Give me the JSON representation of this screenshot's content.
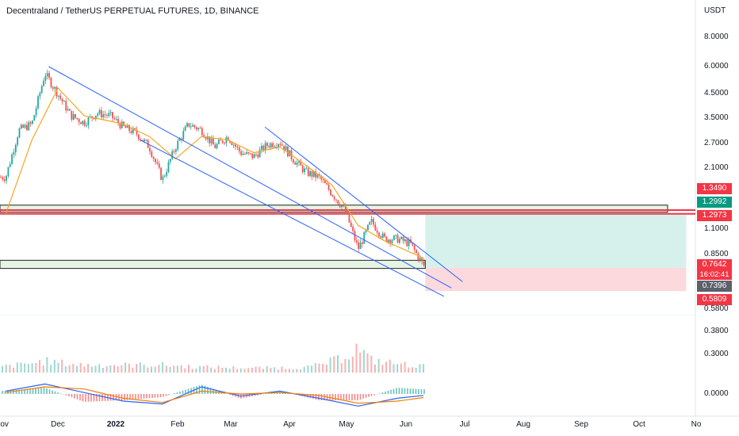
{
  "header": {
    "title": "Decentraland / TetherUS PERPETUAL FUTURES, 1D, BINANCE",
    "unit": "USDT"
  },
  "colors": {
    "up": "#26a69a",
    "down": "#ef5350",
    "ema": "#f5a623",
    "trendline": "#2962ff",
    "zone_fill": "#e6f4e4",
    "resistance": "#f23645",
    "profit_fill": "#cfeee9",
    "loss_fill": "#fbd5d8",
    "macd": "#2962ff",
    "signal": "#f57c00"
  },
  "price_tags": [
    {
      "value": "1.3490",
      "color": "#f23645"
    },
    {
      "value": "1.2992",
      "color": "#089981"
    },
    {
      "value": "1.2973",
      "color": "#f23645"
    },
    {
      "value": "0.7642",
      "color": "#f23645"
    },
    {
      "value": "0.7396",
      "color": "#5d606b"
    },
    {
      "value": "0.5809",
      "color": "#f23645"
    }
  ],
  "countdown": "16:02:41",
  "chart_data": {
    "type": "candlestick",
    "title": "Decentraland / TetherUS PERPETUAL FUTURES, 1D, BINANCE",
    "y_unit": "USDT",
    "y_scale": "log",
    "y_ticks": [
      "8.0000",
      "6.0000",
      "4.5000",
      "3.5000",
      "2.7000",
      "2.1000",
      "1.1000",
      "0.8500",
      "0.5800",
      "0.3800",
      "0.3000",
      "0.0000"
    ],
    "x_ticks": [
      "Nov",
      "Dec",
      "2022",
      "Feb",
      "Mar",
      "Apr",
      "May",
      "Jun",
      "Jul",
      "Aug",
      "Sep",
      "Oct",
      "No"
    ],
    "price_path": [
      {
        "date": "2021-11-01",
        "close": 1.9
      },
      {
        "date": "2021-11-08",
        "close": 3.1
      },
      {
        "date": "2021-11-15",
        "close": 3.3
      },
      {
        "date": "2021-11-22",
        "close": 5.6
      },
      {
        "date": "2021-11-29",
        "close": 4.5
      },
      {
        "date": "2021-12-06",
        "close": 3.6
      },
      {
        "date": "2021-12-13",
        "close": 3.35
      },
      {
        "date": "2021-12-20",
        "close": 3.7
      },
      {
        "date": "2021-12-27",
        "close": 3.6
      },
      {
        "date": "2022-01-03",
        "close": 3.2
      },
      {
        "date": "2022-01-10",
        "close": 3.0
      },
      {
        "date": "2022-01-17",
        "close": 2.6
      },
      {
        "date": "2022-01-24",
        "close": 1.85
      },
      {
        "date": "2022-01-31",
        "close": 2.6
      },
      {
        "date": "2022-02-07",
        "close": 3.3
      },
      {
        "date": "2022-02-14",
        "close": 3.1
      },
      {
        "date": "2022-02-21",
        "close": 2.6
      },
      {
        "date": "2022-02-28",
        "close": 2.9
      },
      {
        "date": "2022-03-07",
        "close": 2.45
      },
      {
        "date": "2022-03-14",
        "close": 2.35
      },
      {
        "date": "2022-03-21",
        "close": 2.65
      },
      {
        "date": "2022-03-28",
        "close": 2.75
      },
      {
        "date": "2022-04-04",
        "close": 2.3
      },
      {
        "date": "2022-04-11",
        "close": 2.0
      },
      {
        "date": "2022-04-18",
        "close": 1.9
      },
      {
        "date": "2022-04-25",
        "close": 1.6
      },
      {
        "date": "2022-05-02",
        "close": 1.35
      },
      {
        "date": "2022-05-09",
        "close": 0.9
      },
      {
        "date": "2022-05-16",
        "close": 1.2
      },
      {
        "date": "2022-05-23",
        "close": 1.0
      },
      {
        "date": "2022-05-30",
        "close": 1.0
      },
      {
        "date": "2022-06-06",
        "close": 0.95
      },
      {
        "date": "2022-06-13",
        "close": 0.76
      }
    ],
    "ema_path": [
      {
        "date": "2021-11-01",
        "value": 1.3
      },
      {
        "date": "2021-11-15",
        "value": 2.8
      },
      {
        "date": "2021-11-29",
        "value": 4.8
      },
      {
        "date": "2021-12-13",
        "value": 3.6
      },
      {
        "date": "2022-01-03",
        "value": 3.3
      },
      {
        "date": "2022-01-17",
        "value": 2.9
      },
      {
        "date": "2022-01-31",
        "value": 2.3
      },
      {
        "date": "2022-02-14",
        "value": 2.9
      },
      {
        "date": "2022-02-28",
        "value": 2.8
      },
      {
        "date": "2022-03-14",
        "value": 2.45
      },
      {
        "date": "2022-03-28",
        "value": 2.6
      },
      {
        "date": "2022-04-11",
        "value": 2.15
      },
      {
        "date": "2022-04-25",
        "value": 1.75
      },
      {
        "date": "2022-05-09",
        "value": 1.15
      },
      {
        "date": "2022-05-23",
        "value": 0.98
      },
      {
        "date": "2022-06-13",
        "value": 0.82
      }
    ],
    "trendlines": [
      {
        "from": {
          "date": "2021-11-24",
          "price": 6.0
        },
        "to": {
          "date": "2022-06-28",
          "price": 0.6
        }
      },
      {
        "from": {
          "date": "2022-01-12",
          "price": 2.8
        },
        "to": {
          "date": "2022-06-24",
          "price": 0.55
        }
      },
      {
        "from": {
          "date": "2022-03-20",
          "price": 3.2
        },
        "to": {
          "date": "2022-07-04",
          "price": 0.64
        }
      }
    ],
    "zones": [
      {
        "from": "2021-10-15",
        "to": "2022-10-22",
        "top": 1.42,
        "bottom": 1.32
      },
      {
        "from": "2021-10-15",
        "to": "2022-06-14",
        "top": 0.8,
        "bottom": 0.735
      }
    ],
    "resistance_lines": [
      1.349,
      1.2973
    ],
    "position": {
      "entry": 0.7396,
      "target": 1.2992,
      "stop": 0.5809,
      "from": "2022-06-14",
      "to": "2022-11-01"
    },
    "volume": [
      {
        "date": "2021-11-01",
        "value": 0.25
      },
      {
        "date": "2021-11-22",
        "value": 0.45
      },
      {
        "date": "2021-12-13",
        "value": 0.3
      },
      {
        "date": "2022-01-24",
        "value": 0.3
      },
      {
        "date": "2022-02-14",
        "value": 0.22
      },
      {
        "date": "2022-03-14",
        "value": 0.18
      },
      {
        "date": "2022-04-11",
        "value": 0.2
      },
      {
        "date": "2022-05-09",
        "value": 1.0
      },
      {
        "date": "2022-05-16",
        "value": 0.5
      },
      {
        "date": "2022-06-13",
        "value": 0.25
      }
    ],
    "macd": [
      {
        "date": "2021-11-01",
        "macd": 0.2,
        "signal": 0.1
      },
      {
        "date": "2021-11-22",
        "macd": 0.7,
        "signal": 0.5
      },
      {
        "date": "2021-12-13",
        "macd": 0.1,
        "signal": 0.35
      },
      {
        "date": "2022-01-03",
        "macd": -0.5,
        "signal": -0.3
      },
      {
        "date": "2022-01-24",
        "macd": -0.7,
        "signal": -0.6
      },
      {
        "date": "2022-02-14",
        "macd": 0.5,
        "signal": 0.2
      },
      {
        "date": "2022-03-07",
        "macd": -0.15,
        "signal": 0.0
      },
      {
        "date": "2022-03-28",
        "macd": 0.2,
        "signal": 0.1
      },
      {
        "date": "2022-04-18",
        "macd": -0.3,
        "signal": -0.1
      },
      {
        "date": "2022-05-09",
        "macd": -0.85,
        "signal": -0.65
      },
      {
        "date": "2022-05-30",
        "macd": -0.3,
        "signal": -0.5
      },
      {
        "date": "2022-06-13",
        "macd": -0.1,
        "signal": -0.25
      }
    ]
  }
}
